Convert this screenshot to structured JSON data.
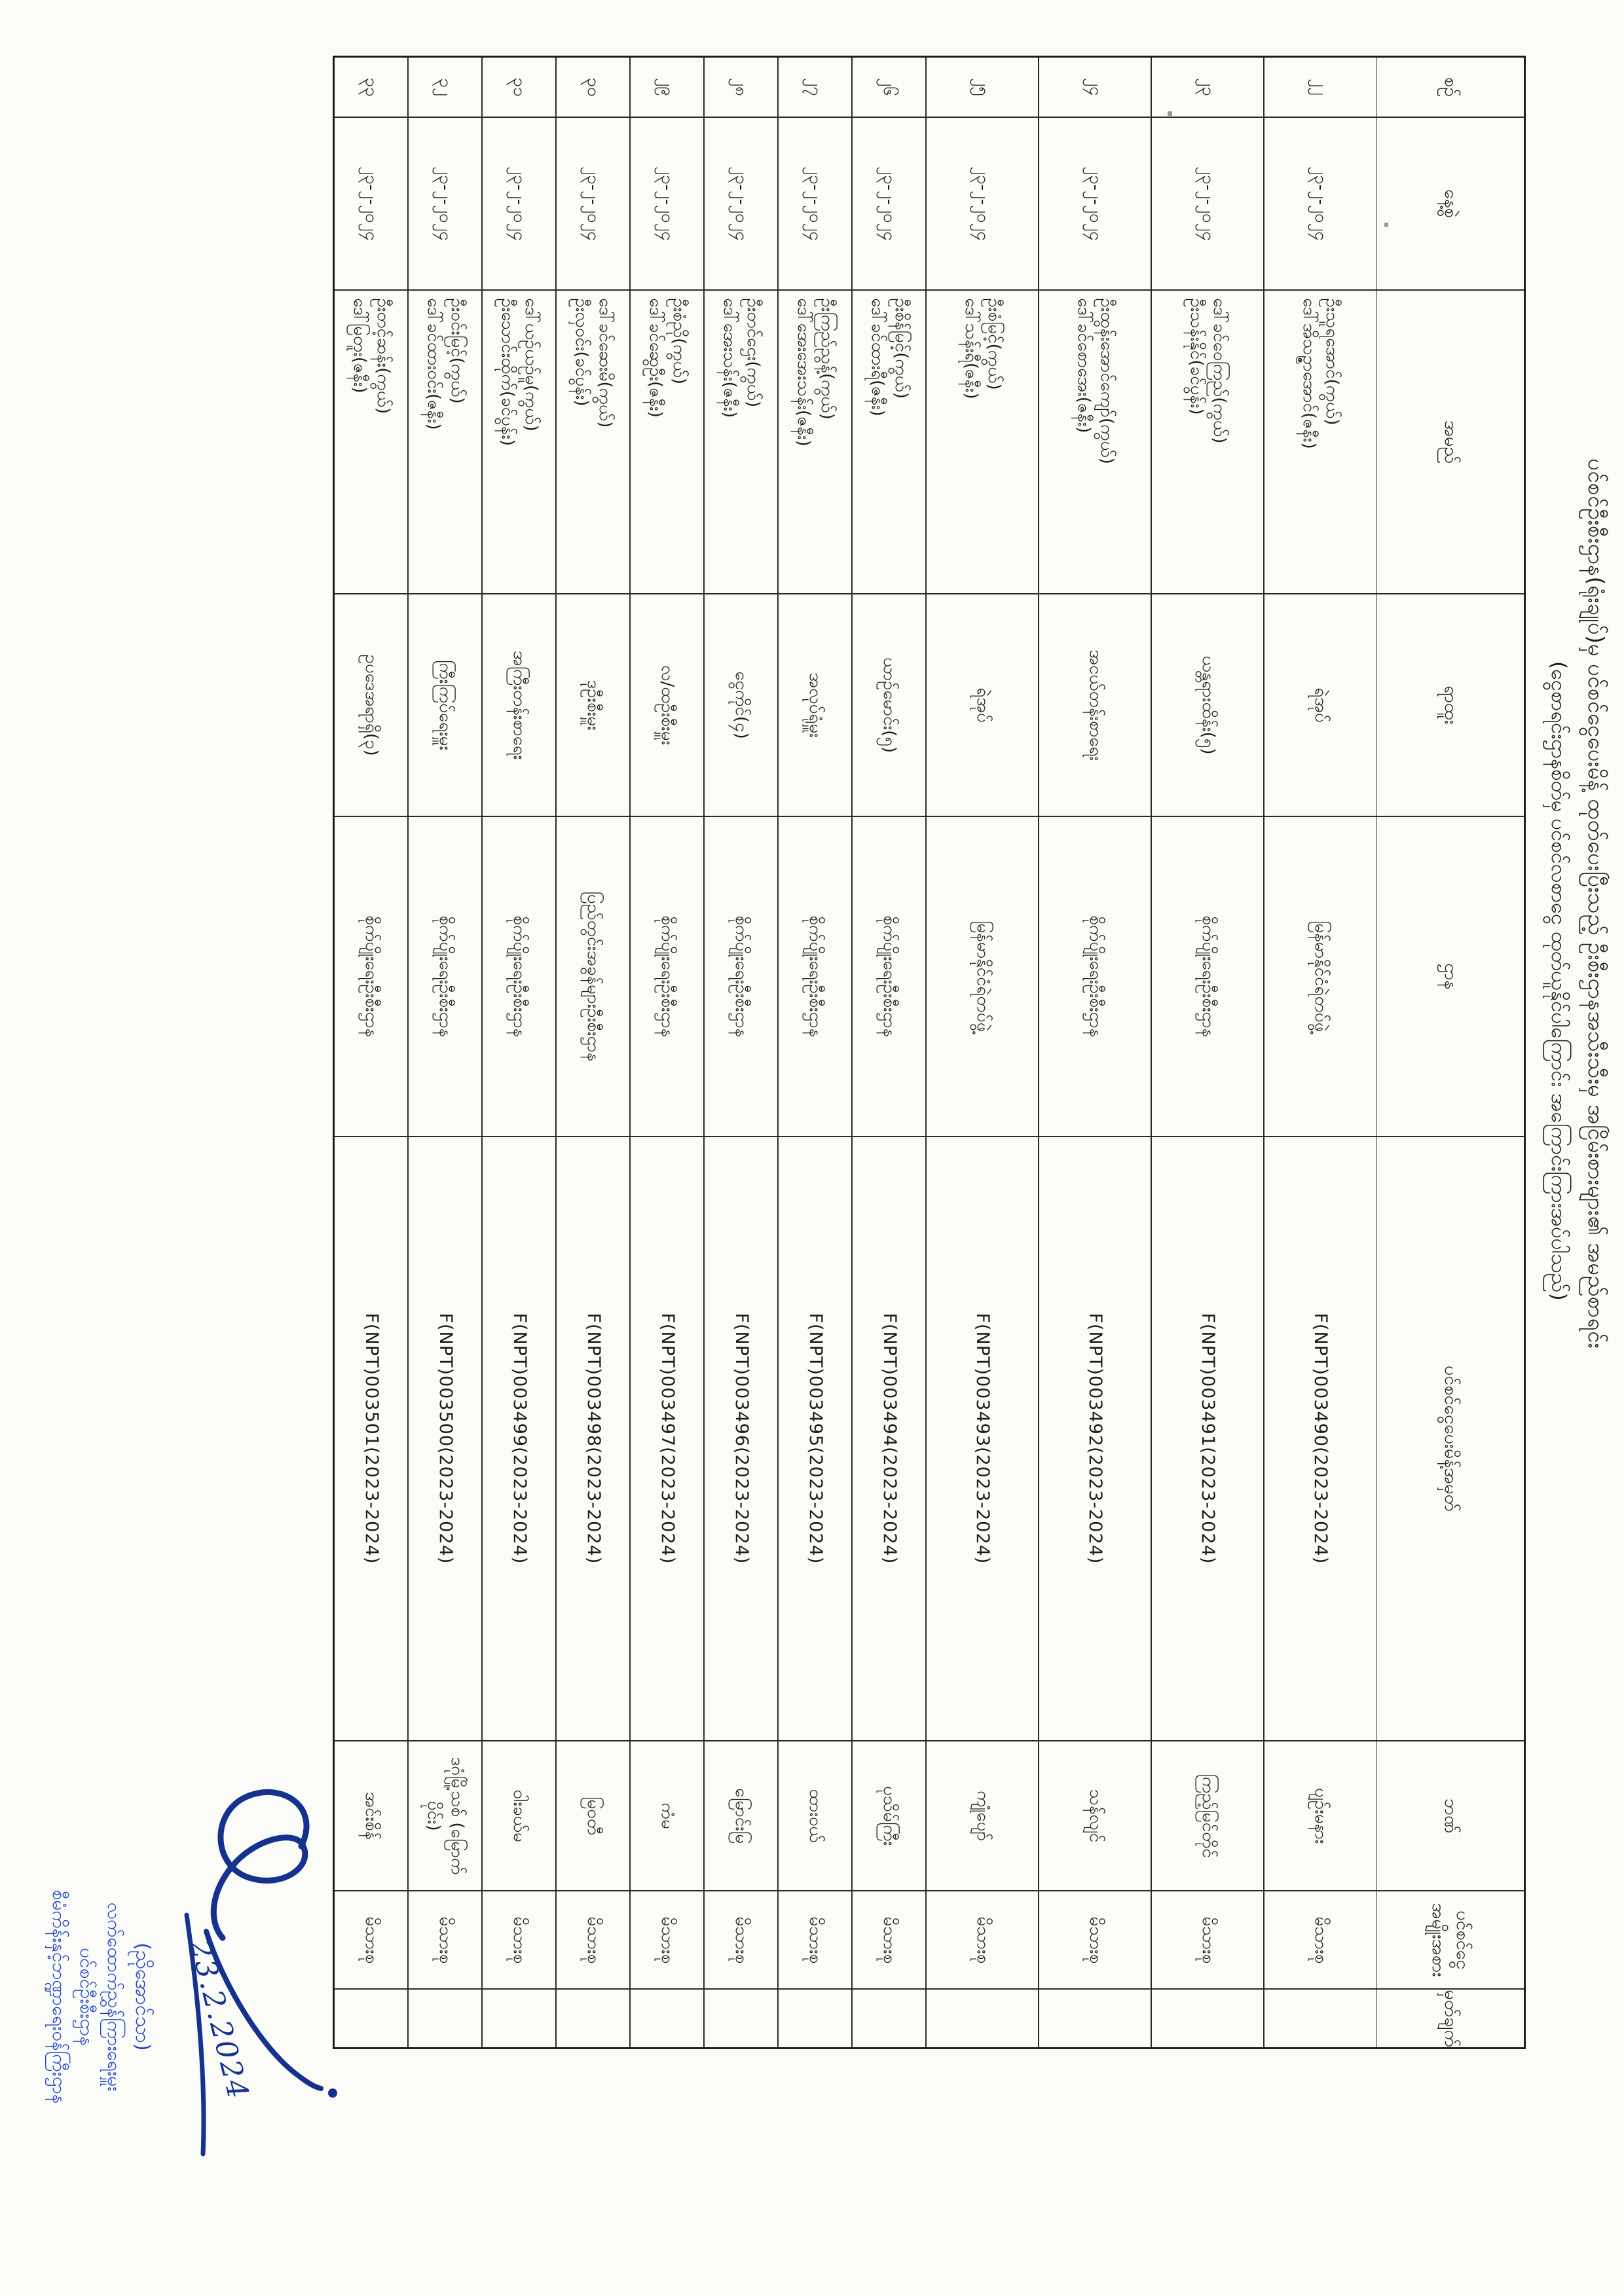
{
  "document": {
    "title_line1": "ပင်စင်ဦးစီးဌာန(ရုံးချုပ်)မှ ပင်စင်ငွေပေးမိန့် ထုတ်ပေးပြီးသည့် ဦးစီးဌာနအသီးသီးမှ အငြိမ်းစားများ၏ အမည်စာရင်း",
    "title_line2": "(ငွေစာရင်းဌာနစိတ်မှ ပင်စင်လစာငွေ ထုတ်ယူနိုင်ပါကြောင်း အကြောင်းကြားအပ်ပါသည်)"
  },
  "table": {
    "headers": [
      "စဉ်",
      "နေ့စွဲ",
      "အမည်",
      "ရာထူး",
      "ဌာန",
      "ပင်စင်ငွေပေးမိန့်အမှတ်",
      "ဘဏ်",
      "ပင်စင်ငွေ အမျိုးအစား",
      "မှတ်ချက်"
    ],
    "rows": [
      {
        "serial": "၂၂",
        "date": "၂၃-၂-၂၀၂၄",
        "name1": "ဦးသူရအောင်(ကွယ်)",
        "name2": "ဒေါ်အိသဉ္ဇာအောင်(ဇနီး)",
        "position": "ရဲအုပ်",
        "department": "မြန်မာနိုင်ငံရဲတပ်ဖွဲ့",
        "payment_order_no": "F(NPT)003490(2023-2024)",
        "bank": "ပျဉ်းမနား",
        "pension_type": "မိသားစု",
        "remark": ""
      },
      {
        "serial": "၂၃",
        "date": "၂၃-၂-၂၀၂၄",
        "name1": "ဒေါ်ခင်ဝေကြည်(ကွယ်)",
        "name2": "ဦးသန်းနိုင်(ခင်ပွန်း)",
        "position": "ယန္တရားထိန်း(၅)",
        "department": "စိုက်ပျိုးရေးဦးစီးဌာန",
        "payment_order_no": "F(NPT)003491(2023-2024)",
        "bank": "ကြည့်မြင်တိုင်",
        "pension_type": "မိသားစု",
        "remark": ""
      },
      {
        "serial": "၂၄",
        "date": "၂၃-၂-၂၀၂၄",
        "name1": "ဦးထွန်းအောင်ကျော်(ကွယ်)",
        "name2": "ဒေါ်ခင်စောအေး(ဇနီး)",
        "position": "အငယ်တန်းစာရေး",
        "department": "စိုက်ပျိုးရေးဦးစီးဌာန",
        "payment_order_no": "F(NPT)003492(2023-2024)",
        "bank": "သန်လျင်",
        "pension_type": "မိသားစု",
        "remark": ""
      },
      {
        "serial": "၂၅",
        "date": "၂၃-၂-၂၀၂၄",
        "name1": "ဦးစံမြင့်(ကွယ်)",
        "name2": "ဒေါ်သန်းရီ(ဇနီး)",
        "position": "ရဲအုပ်",
        "department": "မြန်မာနိုင်ငံရဲတပ်ဖွဲ့",
        "payment_order_no": "F(NPT)003493(2023-2024)",
        "bank": "ကျုံပျော်",
        "pension_type": "မိသားစု",
        "remark": ""
      },
      {
        "serial": "၂၆",
        "date": "၂၃-၂-၂၀၂၄",
        "name1": "ဦးစိန်မြင့်(ကွယ်)",
        "name2": "ဒေါ်ခင်ထားရီ(ဇနီး)",
        "position": "ယာဉ်မောင်း(၅)",
        "department": "စိုက်ပျိုးရေးဦးစီးဌာန",
        "payment_order_no": "F(NPT)003494(2023-2024)",
        "bank": "ပုသိမ်ကြီး",
        "pension_type": "မိသားစု",
        "remark": ""
      },
      {
        "serial": "၂၇",
        "date": "၂၃-၂-၂၀၂၄",
        "name1": "ဦးကြည်ညွန့်(ကွယ်)",
        "name2": "ဒေါ်အေးအေးသန်း(ဇနီး)",
        "position": "အလုပ်ရုံမှူး",
        "department": "စိုက်ပျိုးရေးဦးစီးဌာန",
        "payment_order_no": "F(NPT)003495(2023-2024)",
        "bank": "ထားဝယ်",
        "pension_type": "မိသားစု",
        "remark": ""
      },
      {
        "serial": "၂၈",
        "date": "၂၃-၂-၂၀၂၄",
        "name1": "ဦးတင်ဌေး(ကွယ်)",
        "name2": "ဒေါ်အေးသန်း(ဇနီး)",
        "position": "ငွေကိုင်(၄)",
        "department": "စိုက်ပျိုးရေးဦးစီးဌာန",
        "payment_order_no": "F(NPT)003496(2023-2024)",
        "bank": "မြောင်းမြ",
        "pension_type": "မိသားစု",
        "remark": ""
      },
      {
        "serial": "၂၉",
        "date": "၂၃-၂-၂၀၂၄",
        "name1": "ဦးစံညို(ကွယ်)",
        "name2": "ဒေါ်ခင်ဆွေဦး(ဇနီး)",
        "position": "လ/ထဦးစီးမှူး",
        "department": "စိုက်ပျိုးရေးဦးစီးဌာန",
        "payment_order_no": "F(NPT)003497(2023-2024)",
        "bank": "ကံမ",
        "pension_type": "မိသားစု",
        "remark": ""
      },
      {
        "serial": "၃၀",
        "date": "၂၃-၂-၂၀၂၄",
        "name1": "ဒေါ်ခင်ဆေးမိ(ကွယ်)",
        "name2": "ဦးလှဝင်း(ခင်ပွန်း)",
        "position": "ဒုဦးစီးမှူး",
        "department": "ပြည်တွင်းအခွန်များဦးစီးဌာန",
        "payment_order_no": "F(NPT)003498(2023-2024)",
        "bank": "မြဝတီ",
        "pension_type": "မိသားစု",
        "remark": ""
      },
      {
        "serial": "၃၁",
        "date": "၂၃-၂-၂၀၂၄",
        "name1": "ဒေါ်ယဉ်ယဉ်မူ(ကွယ်)",
        "name2": "ဦးသောင်းထိုက်(ခင်ပွန်း)",
        "position": "အကြီးတန်းစာရေး",
        "department": "စိုက်ပျိုးရေးဦးစီးဌာန",
        "payment_order_no": "F(NPT)003499(2023-2024)",
        "bank": "ဝါးခယ်မ",
        "pension_type": "မိသားစု",
        "remark": ""
      },
      {
        "serial": "၃၂",
        "date": "၂၃-၂-၂၀၂၄",
        "name1": "ဦးဝင်းမြင့်(ကွယ်)",
        "name2": "ဒေါ်ခင်ထားဝင်း(ဇနီး)",
        "position": "ကြီးကြပ်ရေးမှူး",
        "department": "စိုက်ပျိုးရေးဦးစီးဌာန",
        "payment_order_no": "F(NPT)003500(2023-2024)",
        "bank": "ဒဂုံမြို့သစ် (မြောက်ပိုင်း)",
        "pension_type": "မိသားစု",
        "remark": ""
      },
      {
        "serial": "၃၃",
        "date": "၂၃-၂-၂၀၂၄",
        "name1": "ဦးတင့်ဆန်း(ကွယ်)",
        "name2": "ဒေါ်မြတူး(ဇနီး)",
        "position": "ဥပဒေအရာရှိ(၃)",
        "department": "စိုက်ပျိုးရေးဦးစီးဌာန",
        "payment_order_no": "F(NPT)003501(2023-2024)",
        "bank": "အင်းစိန်",
        "pension_type": "မိသားစု",
        "remark": ""
      }
    ]
  },
  "stamp": {
    "line1": "(ညိုအောင်သာ)",
    "line2": "လက်ထောက်ညွှန်ကြားရေးမှူး",
    "line3": "ပင်စင်ဦးစီးဌာန",
    "line4": "စီမံကိန်းနှင့်ဘဏ္ဍာရေးဝန်ကြီးဌာန",
    "signature_date": "23.2.2024",
    "ink_color": "#1f46c9"
  }
}
